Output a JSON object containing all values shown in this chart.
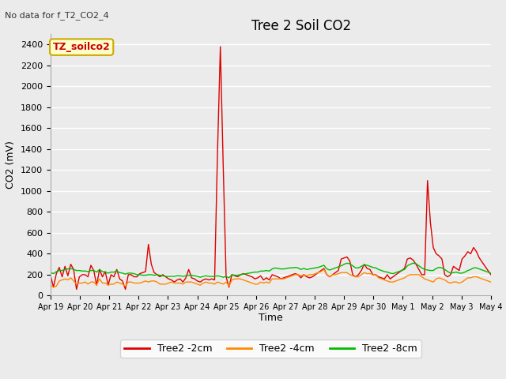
{
  "title": "Tree 2 Soil CO2",
  "subtitle": "No data for f_T2_CO2_4",
  "ylabel": "CO2 (mV)",
  "xlabel": "Time",
  "ylim": [
    0,
    2500
  ],
  "background_color": "#ebebeb",
  "annotation_box_color": "#ffffcc",
  "annotation_box_edge": "#ccaa00",
  "annotation_text": "TZ_soilco2",
  "x_tick_labels": [
    "Apr 19",
    "Apr 20",
    "Apr 21",
    "Apr 22",
    "Apr 23",
    "Apr 24",
    "Apr 25",
    "Apr 26",
    "Apr 27",
    "Apr 28",
    "Apr 29",
    "Apr 30",
    "May 1",
    "May 2",
    "May 3",
    "May 4"
  ],
  "series": [
    {
      "label": "Tree2 -2cm",
      "color": "#dd0000",
      "linewidth": 1.0,
      "data": [
        190,
        80,
        210,
        270,
        180,
        280,
        190,
        300,
        250,
        60,
        180,
        200,
        200,
        180,
        290,
        240,
        100,
        250,
        180,
        230,
        100,
        200,
        180,
        250,
        160,
        140,
        60,
        200,
        200,
        180,
        180,
        210,
        220,
        230,
        490,
        300,
        220,
        200,
        180,
        200,
        180,
        160,
        150,
        130,
        150,
        160,
        130,
        170,
        250,
        170,
        160,
        140,
        130,
        150,
        160,
        150,
        160,
        150,
        1360,
        2380,
        1230,
        180,
        80,
        200,
        190,
        180,
        200,
        210,
        200,
        190,
        180,
        160,
        170,
        190,
        150,
        170,
        150,
        200,
        190,
        180,
        160,
        170,
        180,
        190,
        200,
        210,
        200,
        170,
        200,
        180,
        170,
        180,
        200,
        220,
        240,
        260,
        200,
        180,
        200,
        220,
        240,
        350,
        360,
        370,
        330,
        200,
        180,
        200,
        240,
        300,
        260,
        250,
        200,
        200,
        180,
        170,
        160,
        200,
        160,
        180,
        200,
        220,
        240,
        260,
        350,
        360,
        340,
        300,
        250,
        200,
        200,
        1100,
        700,
        460,
        400,
        380,
        350,
        200,
        180,
        200,
        280,
        260,
        240,
        350,
        380,
        420,
        400,
        460,
        420,
        360,
        320,
        280,
        240,
        200
      ]
    },
    {
      "label": "Tree2 -4cm",
      "color": "#ff8800",
      "linewidth": 1.0,
      "data": [
        100,
        80,
        90,
        140,
        150,
        160,
        150,
        170,
        140,
        110,
        120,
        120,
        130,
        110,
        130,
        130,
        100,
        160,
        120,
        120,
        100,
        110,
        110,
        130,
        120,
        110,
        90,
        130,
        130,
        120,
        120,
        120,
        130,
        140,
        130,
        140,
        140,
        130,
        110,
        110,
        110,
        120,
        130,
        120,
        120,
        120,
        110,
        130,
        130,
        130,
        120,
        110,
        100,
        120,
        130,
        120,
        120,
        110,
        130,
        120,
        110,
        130,
        90,
        150,
        160,
        160,
        160,
        150,
        140,
        130,
        120,
        110,
        110,
        130,
        120,
        130,
        120,
        160,
        160,
        160,
        160,
        160,
        170,
        180,
        190,
        200,
        200,
        190,
        200,
        190,
        200,
        200,
        210,
        220,
        230,
        250,
        200,
        180,
        200,
        200,
        210,
        220,
        220,
        220,
        200,
        190,
        180,
        180,
        200,
        220,
        210,
        210,
        200,
        200,
        170,
        160,
        150,
        140,
        130,
        130,
        140,
        150,
        160,
        170,
        190,
        200,
        200,
        200,
        200,
        180,
        160,
        150,
        140,
        130,
        160,
        170,
        160,
        150,
        130,
        120,
        130,
        130,
        120,
        130,
        150,
        170,
        170,
        180,
        180,
        170,
        160,
        150,
        140,
        130
      ]
    },
    {
      "label": "Tree2 -8cm",
      "color": "#00bb00",
      "linewidth": 1.0,
      "data": [
        220,
        210,
        230,
        240,
        240,
        250,
        255,
        260,
        250,
        240,
        240,
        235,
        235,
        230,
        240,
        240,
        225,
        250,
        230,
        225,
        215,
        225,
        225,
        235,
        220,
        215,
        205,
        215,
        215,
        210,
        200,
        200,
        195,
        195,
        200,
        200,
        195,
        200,
        195,
        190,
        185,
        185,
        185,
        185,
        190,
        190,
        185,
        190,
        195,
        195,
        190,
        185,
        175,
        185,
        190,
        185,
        185,
        185,
        190,
        185,
        175,
        185,
        170,
        200,
        195,
        195,
        200,
        205,
        210,
        215,
        220,
        225,
        225,
        235,
        235,
        240,
        235,
        255,
        265,
        260,
        255,
        255,
        260,
        265,
        265,
        270,
        265,
        250,
        260,
        250,
        255,
        260,
        265,
        270,
        280,
        290,
        255,
        245,
        255,
        265,
        275,
        285,
        300,
        310,
        305,
        285,
        265,
        265,
        280,
        295,
        290,
        280,
        270,
        265,
        250,
        240,
        230,
        225,
        215,
        210,
        220,
        230,
        240,
        250,
        285,
        300,
        310,
        305,
        285,
        265,
        250,
        245,
        240,
        240,
        260,
        270,
        265,
        250,
        230,
        215,
        220,
        225,
        215,
        215,
        225,
        240,
        250,
        265,
        265,
        255,
        245,
        235,
        225,
        215
      ]
    }
  ]
}
